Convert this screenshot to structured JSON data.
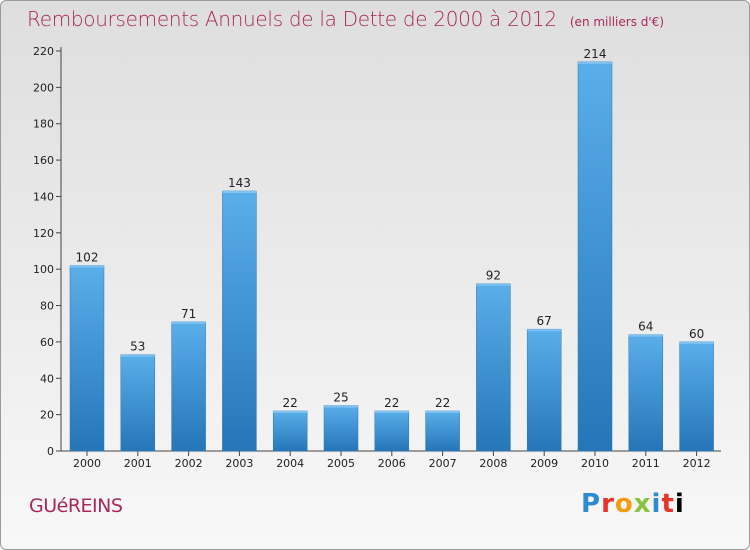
{
  "header": {
    "title": "Remboursements Annuels de la Dette de 2000 à 2012",
    "unit": "(en milliers d'€)"
  },
  "footer": {
    "city": "GUéREINS",
    "logo_letters": [
      "P",
      "r",
      "o",
      "x",
      "i",
      "t",
      "i"
    ]
  },
  "colors": {
    "title": "#a8285a",
    "bar_top": "#5aaee9",
    "bar_bottom": "#2576b8"
  },
  "chart_data": {
    "type": "bar",
    "categories": [
      "2000",
      "2001",
      "2002",
      "2003",
      "2004",
      "2005",
      "2006",
      "2007",
      "2008",
      "2009",
      "2010",
      "2011",
      "2012"
    ],
    "values": [
      102,
      53,
      71,
      143,
      22,
      25,
      22,
      22,
      92,
      67,
      214,
      64,
      60
    ],
    "ylim": [
      0,
      220
    ],
    "yticks": [
      0,
      20,
      40,
      60,
      80,
      100,
      120,
      140,
      160,
      180,
      200,
      220
    ],
    "grid": false,
    "data_labels": true
  }
}
